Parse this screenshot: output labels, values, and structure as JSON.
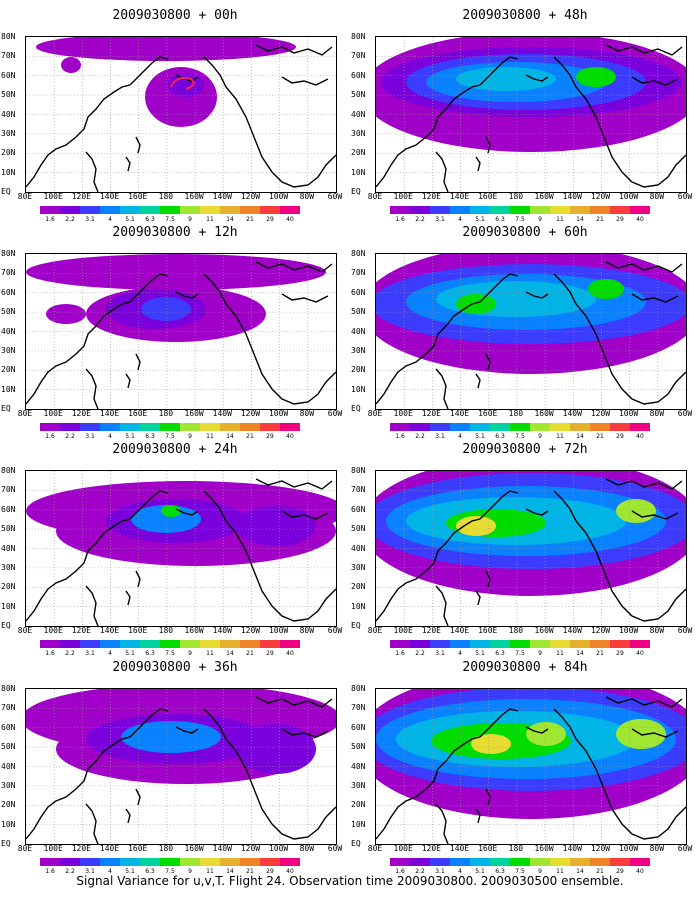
{
  "panels": [
    {
      "title": "2009030800 + 00h",
      "level": 0
    },
    {
      "title": "2009030800 + 48h",
      "level": 4
    },
    {
      "title": "2009030800 + 12h",
      "level": 1
    },
    {
      "title": "2009030800 + 60h",
      "level": 5
    },
    {
      "title": "2009030800 + 24h",
      "level": 2
    },
    {
      "title": "2009030800 + 72h",
      "level": 6
    },
    {
      "title": "2009030800 + 36h",
      "level": 3
    },
    {
      "title": "2009030800 + 84h",
      "level": 7
    }
  ],
  "lat_labels": [
    "80N",
    "70N",
    "60N",
    "50N",
    "40N",
    "30N",
    "20N",
    "10N",
    "EQ"
  ],
  "lon_labels": [
    "80E",
    "100E",
    "120E",
    "140E",
    "160E",
    "180",
    "160W",
    "140W",
    "120W",
    "100W",
    "80W",
    "60W"
  ],
  "colorbar": {
    "colors": [
      "#a000c8",
      "#7a00dc",
      "#3c3cff",
      "#0a82ff",
      "#00b4e6",
      "#00d2a0",
      "#00dc00",
      "#a0e632",
      "#e6dc32",
      "#e6af2d",
      "#f08228",
      "#fa3c3c",
      "#f00082"
    ],
    "labels": [
      "1.6",
      "2.2",
      "3.1",
      "4",
      "5.1",
      "6.3",
      "7.5",
      "9",
      "11",
      "14",
      "21",
      "29",
      "40"
    ]
  },
  "footer": "Signal Variance for u,v,T. Flight 24. Observation time 2009030800. 2009030500 ensemble."
}
